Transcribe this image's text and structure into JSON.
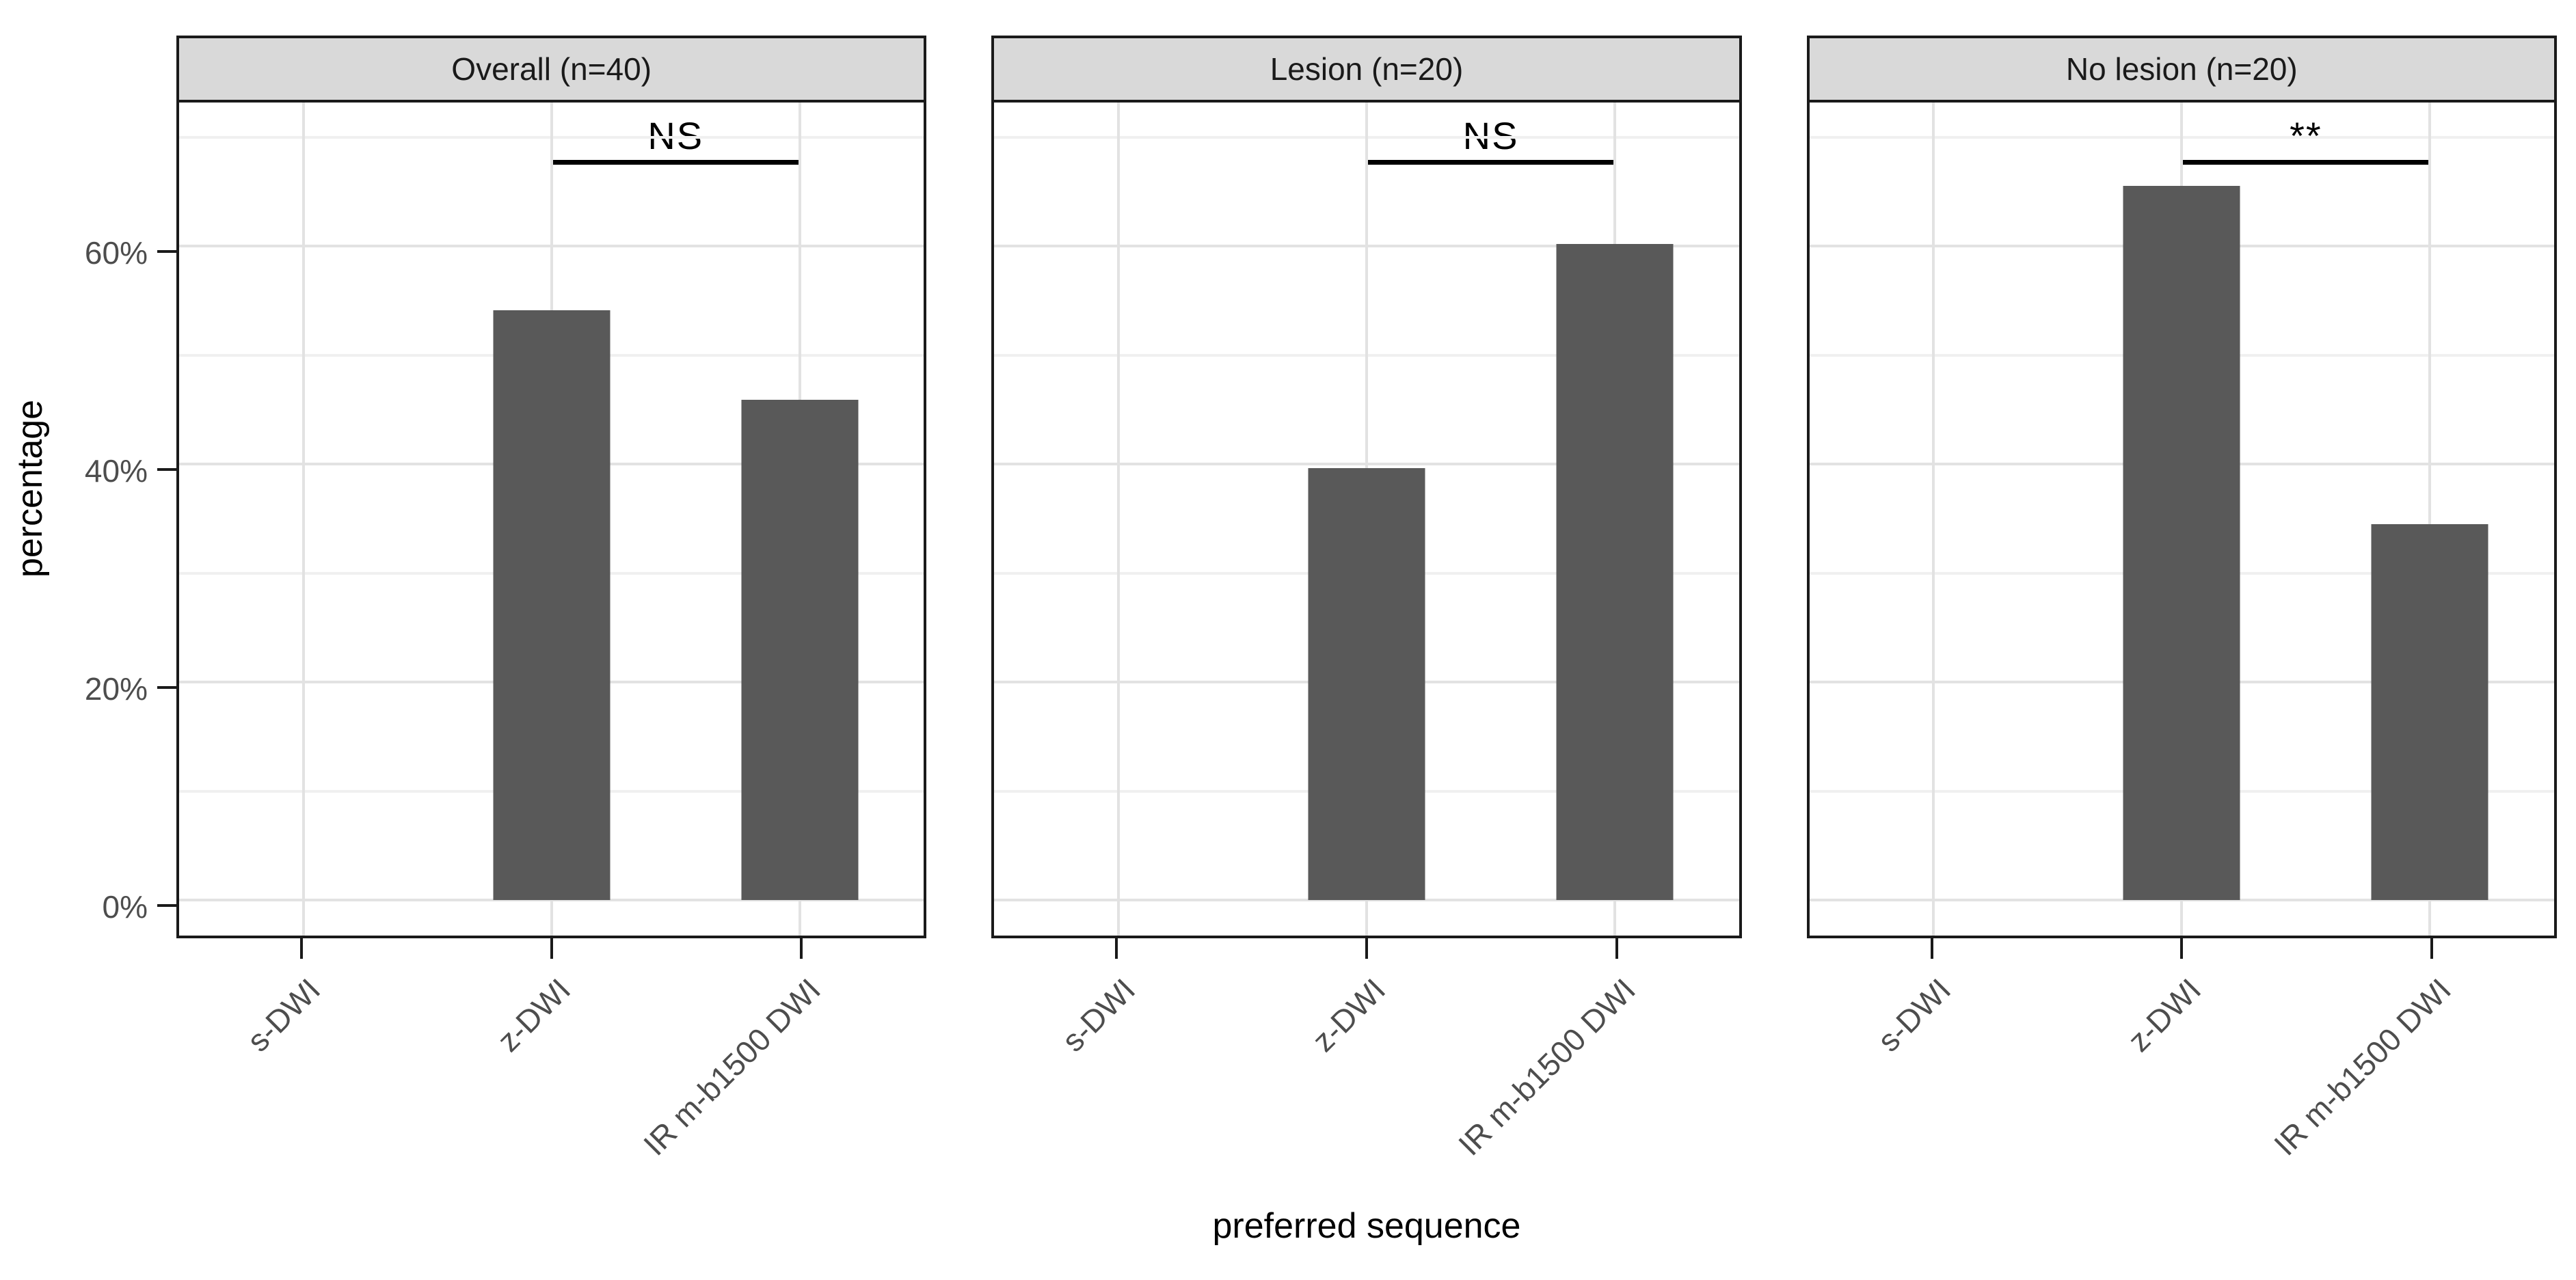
{
  "chart_data": {
    "type": "bar",
    "title": "",
    "xlabel": "preferred sequence",
    "ylabel": "percentage",
    "ylim": [
      0,
      73.5
    ],
    "grid": true,
    "legend": "none",
    "categories": [
      "s-DWI",
      "z-DWI",
      "IR m-b1500 DWI"
    ],
    "y_ticks": [
      {
        "label": "0%",
        "value": 0
      },
      {
        "label": "20%",
        "value": 20
      },
      {
        "label": "40%",
        "value": 40
      },
      {
        "label": "60%",
        "value": 60
      }
    ],
    "y_minor": [
      10,
      30,
      50,
      70
    ],
    "facets": [
      {
        "label": "Overall (n=40)",
        "values": [
          0,
          54.1,
          45.9
        ],
        "significance": {
          "label": "NS",
          "between": [
            "z-DWI",
            "IR m-b1500 DWI"
          ]
        }
      },
      {
        "label": "Lesion (n=20)",
        "values": [
          0,
          39.6,
          60.2
        ],
        "significance": {
          "label": "NS",
          "between": [
            "z-DWI",
            "IR m-b1500 DWI"
          ]
        }
      },
      {
        "label": "No lesion (n=20)",
        "values": [
          0,
          65.5,
          34.5
        ],
        "significance": {
          "label": "**",
          "between": [
            "z-DWI",
            "IR m-b1500 DWI"
          ]
        }
      }
    ]
  },
  "colors": {
    "bar_fill": "#595959",
    "strip_background": "#d9d9d9",
    "panel_border": "#1a1a1a",
    "grid_major": "#e2e2e2",
    "grid_minor": "#f0f0f0",
    "tick_label": "#4d4d4d",
    "background": "#ffffff"
  }
}
